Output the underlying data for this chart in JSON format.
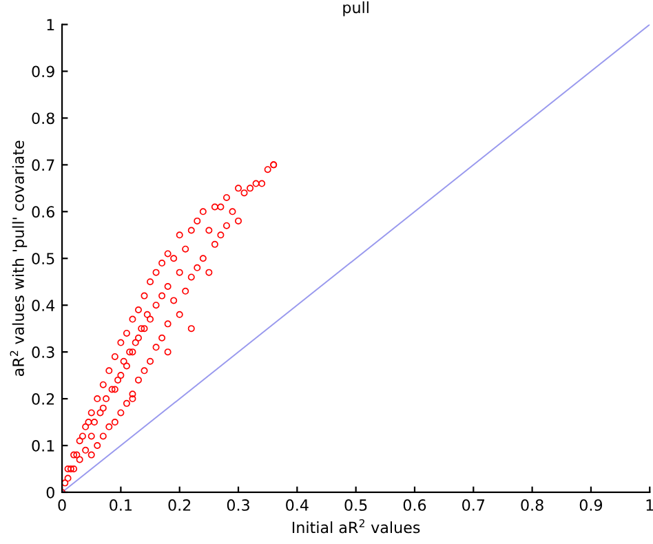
{
  "chart_data": {
    "type": "scatter",
    "title": "pull",
    "xlabel": "Initial aR$^{2}$ values",
    "ylabel": "aR$^{2}$ values with 'pull' covariate",
    "xlim": [
      0,
      1
    ],
    "ylim": [
      0,
      1
    ],
    "xticks": [
      0,
      0.1,
      0.2,
      0.3,
      0.4,
      0.5,
      0.6,
      0.7,
      0.8,
      0.9,
      1
    ],
    "yticks": [
      0,
      0.1,
      0.2,
      0.3,
      0.4,
      0.5,
      0.6,
      0.7,
      0.8,
      0.9,
      1
    ],
    "series": [
      {
        "color": "#ff0000",
        "marker": "circle",
        "x": [
          0.0,
          0.005,
          0.01,
          0.01,
          0.015,
          0.02,
          0.02,
          0.025,
          0.03,
          0.03,
          0.035,
          0.04,
          0.04,
          0.045,
          0.05,
          0.05,
          0.05,
          0.055,
          0.06,
          0.06,
          0.065,
          0.07,
          0.07,
          0.07,
          0.075,
          0.08,
          0.08,
          0.085,
          0.09,
          0.09,
          0.09,
          0.095,
          0.1,
          0.1,
          0.1,
          0.105,
          0.11,
          0.11,
          0.11,
          0.115,
          0.12,
          0.12,
          0.12,
          0.125,
          0.13,
          0.13,
          0.13,
          0.135,
          0.14,
          0.14,
          0.14,
          0.145,
          0.15,
          0.15,
          0.15,
          0.16,
          0.16,
          0.16,
          0.17,
          0.17,
          0.17,
          0.18,
          0.18,
          0.18,
          0.19,
          0.19,
          0.2,
          0.2,
          0.2,
          0.21,
          0.21,
          0.22,
          0.22,
          0.23,
          0.23,
          0.24,
          0.24,
          0.25,
          0.25,
          0.26,
          0.26,
          0.27,
          0.27,
          0.28,
          0.28,
          0.29,
          0.3,
          0.3,
          0.31,
          0.32,
          0.33,
          0.34,
          0.35,
          0.36,
          0.36,
          0.12,
          0.18,
          0.22
        ],
        "values": [
          0.0,
          0.02,
          0.03,
          0.05,
          0.05,
          0.05,
          0.08,
          0.08,
          0.07,
          0.11,
          0.12,
          0.09,
          0.14,
          0.15,
          0.08,
          0.12,
          0.17,
          0.15,
          0.1,
          0.2,
          0.17,
          0.12,
          0.18,
          0.23,
          0.2,
          0.14,
          0.26,
          0.22,
          0.15,
          0.22,
          0.29,
          0.24,
          0.17,
          0.25,
          0.32,
          0.28,
          0.19,
          0.27,
          0.34,
          0.3,
          0.21,
          0.3,
          0.37,
          0.32,
          0.24,
          0.33,
          0.39,
          0.35,
          0.26,
          0.35,
          0.42,
          0.38,
          0.28,
          0.37,
          0.45,
          0.31,
          0.4,
          0.47,
          0.33,
          0.42,
          0.49,
          0.36,
          0.44,
          0.51,
          0.41,
          0.5,
          0.38,
          0.47,
          0.55,
          0.43,
          0.52,
          0.46,
          0.56,
          0.48,
          0.58,
          0.5,
          0.6,
          0.47,
          0.56,
          0.53,
          0.61,
          0.55,
          0.61,
          0.57,
          0.63,
          0.6,
          0.58,
          0.65,
          0.64,
          0.65,
          0.66,
          0.66,
          0.69,
          0.7,
          0.7,
          0.2,
          0.3,
          0.35
        ]
      },
      {
        "type": "line",
        "color": "#9999ee",
        "x": [
          0,
          1
        ],
        "values": [
          0,
          1
        ]
      }
    ]
  }
}
